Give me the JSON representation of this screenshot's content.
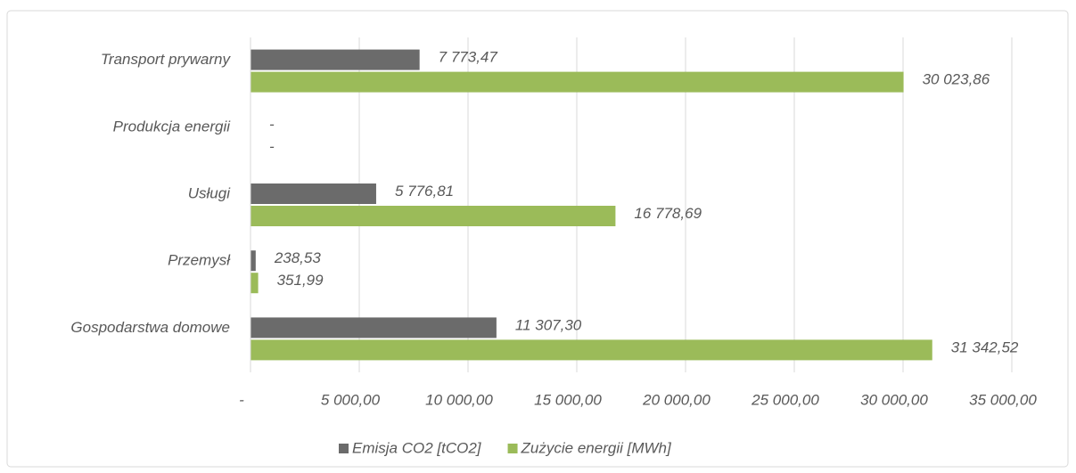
{
  "chart_data": {
    "type": "hbar",
    "categories": [
      "Transport prywarny",
      "Produkcja energii",
      "Usługi",
      "Przemysł",
      "Gospodarstwa domowe"
    ],
    "series": [
      {
        "name": "Emisja CO2 [tCO2]",
        "color": "#6b6b6b",
        "values": [
          7773.47,
          0,
          5776.81,
          238.53,
          11307.3
        ],
        "value_labels": [
          "7 773,47",
          "-",
          "5 776,81",
          "238,53",
          "11 307,30"
        ]
      },
      {
        "name": "Zużycie energii [MWh]",
        "color": "#9bbb59",
        "values": [
          30023.86,
          0,
          16778.69,
          351.99,
          31342.52
        ],
        "value_labels": [
          "30 023,86",
          "-",
          "16 778,69",
          "351,99",
          "31 342,52"
        ]
      }
    ],
    "xlim": [
      0,
      35000
    ],
    "xticks": [
      {
        "value": 0,
        "label": "-"
      },
      {
        "value": 5000,
        "label": "5 000,00"
      },
      {
        "value": 10000,
        "label": "10 000,00"
      },
      {
        "value": 15000,
        "label": "15 000,00"
      },
      {
        "value": 20000,
        "label": "20 000,00"
      },
      {
        "value": 25000,
        "label": "25 000,00"
      },
      {
        "value": 30000,
        "label": "30 000,00"
      },
      {
        "value": 35000,
        "label": "35 000,00"
      }
    ],
    "grid": true,
    "legend": "bottom"
  }
}
